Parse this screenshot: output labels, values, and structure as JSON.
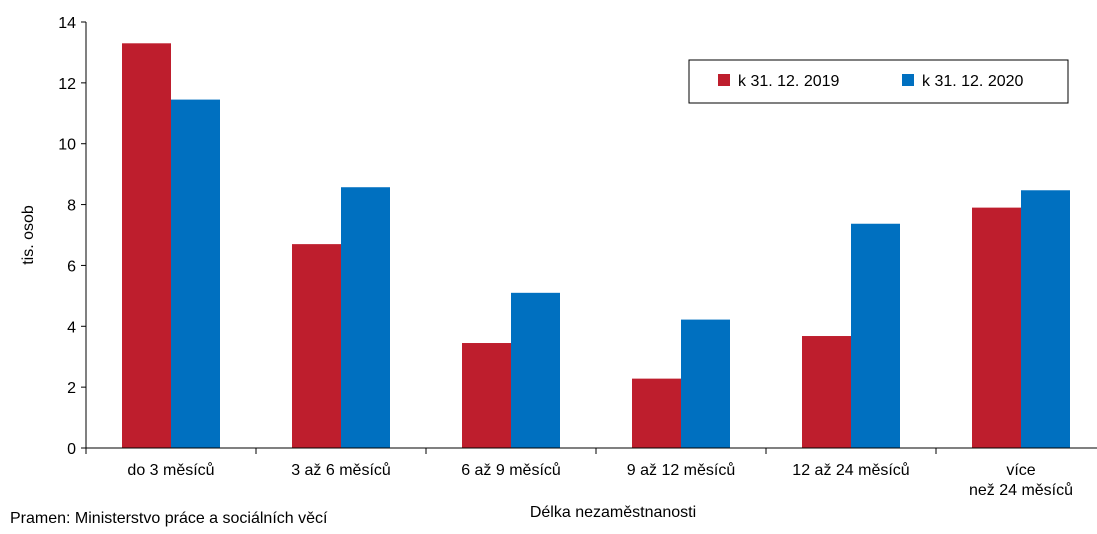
{
  "chart_data": {
    "type": "bar",
    "title": "",
    "xlabel": "Délka nezaměstnanosti",
    "ylabel": "tis. osob",
    "ylim": [
      0,
      14
    ],
    "yticks": [
      0,
      2,
      4,
      6,
      8,
      10,
      12,
      14
    ],
    "categories": [
      [
        "do 3 měsíců"
      ],
      [
        "3 až 6 měsíců"
      ],
      [
        "6 až 9 měsíců"
      ],
      [
        "9 až 12 měsíců"
      ],
      [
        "12 až 24 měsíců"
      ],
      [
        "více",
        "než 24 měsíců"
      ]
    ],
    "series": [
      {
        "name": "k 31. 12. 2019",
        "color": "#be1e2d",
        "values": [
          13.3,
          6.7,
          3.45,
          2.28,
          3.68,
          7.9
        ]
      },
      {
        "name": "k 31. 12. 2020",
        "color": "#0070c0",
        "values": [
          11.45,
          8.57,
          5.1,
          4.22,
          7.37,
          8.47
        ]
      }
    ],
    "legend": "top-right",
    "grid": false
  },
  "source": "Pramen: Ministerstvo práce a sociálních věcí"
}
